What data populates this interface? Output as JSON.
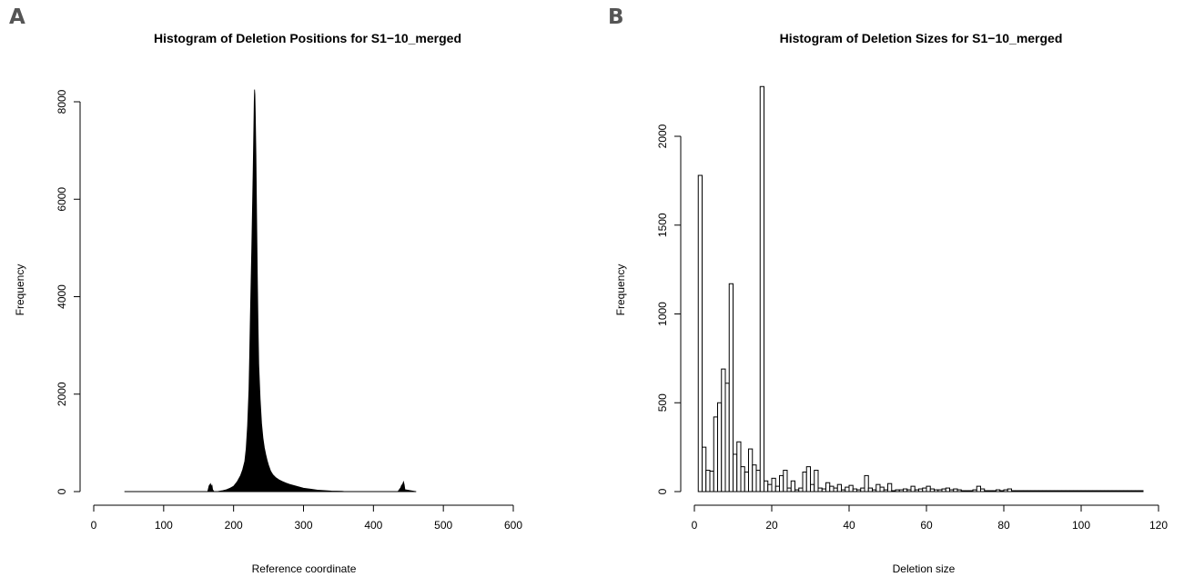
{
  "panel_labels": [
    "A",
    "B"
  ],
  "chart_data": [
    {
      "type": "bar",
      "panel": "A",
      "title": "Histogram of Deletion Positions for S1−10_merged",
      "xlabel": "Reference coordinate",
      "ylabel": "Frequency",
      "xlim": [
        0,
        600
      ],
      "ylim": [
        0,
        8000
      ],
      "xticks": [
        "0",
        "100",
        "200",
        "300",
        "400",
        "500",
        "600"
      ],
      "yticks": [
        "0",
        "2000",
        "4000",
        "6000",
        "8000"
      ],
      "baseline_range": [
        44,
        461
      ],
      "grid": false,
      "fill": "#000000",
      "profile": {
        "x": [
          44,
          163,
          164,
          165,
          167,
          168,
          169,
          170,
          172,
          178,
          180,
          185,
          190,
          195,
          200,
          205,
          210,
          213,
          216,
          218,
          220,
          222,
          223,
          224,
          225,
          226,
          227,
          228,
          229,
          229.5,
          230,
          230.5,
          231,
          232,
          233,
          234,
          235,
          236,
          238,
          240,
          242,
          244,
          246,
          248,
          250,
          253,
          256,
          260,
          265,
          270,
          275,
          280,
          290,
          300,
          310,
          320,
          330,
          340,
          355,
          360,
          435,
          437,
          439,
          440,
          442,
          443,
          444,
          445,
          461
        ],
        "y": [
          0,
          0,
          60,
          120,
          160,
          80,
          140,
          40,
          0,
          5,
          10,
          20,
          40,
          70,
          110,
          200,
          330,
          450,
          620,
          880,
          1350,
          2100,
          2800,
          3600,
          4300,
          5000,
          5800,
          6600,
          7500,
          8000,
          8250,
          8150,
          7800,
          6900,
          5600,
          4400,
          3400,
          2600,
          1900,
          1400,
          1100,
          900,
          760,
          640,
          540,
          420,
          350,
          290,
          240,
          205,
          175,
          150,
          110,
          70,
          50,
          30,
          20,
          12,
          6,
          0,
          0,
          40,
          80,
          120,
          160,
          200,
          140,
          40,
          0
        ]
      }
    },
    {
      "type": "bar",
      "panel": "B",
      "title": "Histogram of Deletion Sizes for S1−10_merged",
      "xlabel": "Deletion size",
      "ylabel": "Frequency",
      "xlim": [
        0,
        120
      ],
      "ylim": [
        0,
        2000
      ],
      "xticks": [
        "0",
        "20",
        "40",
        "60",
        "80",
        "100",
        "120"
      ],
      "yticks": [
        "0",
        "500",
        "1000",
        "1500",
        "2000"
      ],
      "baseline_range": [
        1,
        116
      ],
      "grid": false,
      "fill": "#ffffff",
      "stroke": "#000000",
      "bins": {
        "start": 1,
        "width": 1,
        "values": [
          1780,
          250,
          120,
          115,
          420,
          500,
          690,
          610,
          1170,
          210,
          280,
          140,
          110,
          240,
          150,
          120,
          2280,
          60,
          40,
          75,
          30,
          90,
          120,
          20,
          60,
          10,
          20,
          110,
          140,
          40,
          120,
          20,
          15,
          50,
          30,
          20,
          40,
          10,
          25,
          35,
          15,
          10,
          20,
          90,
          20,
          10,
          40,
          25,
          10,
          45,
          5,
          10,
          10,
          15,
          10,
          30,
          10,
          15,
          20,
          30,
          15,
          10,
          10,
          15,
          20,
          10,
          15,
          10,
          5,
          5,
          5,
          10,
          30,
          15,
          5,
          5,
          5,
          10,
          5,
          10,
          15,
          5,
          5,
          5,
          5,
          5,
          5,
          5,
          5,
          5,
          5,
          5,
          5,
          5,
          5,
          5,
          5,
          5,
          5,
          5,
          5,
          5,
          5,
          5,
          5,
          5,
          5,
          5,
          5,
          5,
          5,
          5,
          5,
          5,
          5
        ]
      }
    }
  ]
}
